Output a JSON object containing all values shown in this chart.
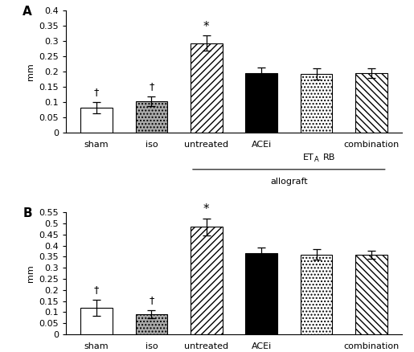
{
  "panels": [
    {
      "label": "A",
      "values": [
        0.082,
        0.103,
        0.293,
        0.195,
        0.193,
        0.195
      ],
      "errors": [
        0.018,
        0.015,
        0.025,
        0.018,
        0.018,
        0.015
      ],
      "ylim": [
        0,
        0.4
      ],
      "yticks": [
        0,
        0.05,
        0.1,
        0.15,
        0.2,
        0.25,
        0.3,
        0.35,
        0.4
      ],
      "star_bar": 2,
      "dagger_bars": [
        0,
        1
      ]
    },
    {
      "label": "B",
      "values": [
        0.12,
        0.092,
        0.485,
        0.365,
        0.36,
        0.358
      ],
      "errors": [
        0.035,
        0.018,
        0.038,
        0.025,
        0.025,
        0.018
      ],
      "ylim": [
        0,
        0.55
      ],
      "yticks": [
        0,
        0.05,
        0.1,
        0.15,
        0.2,
        0.25,
        0.3,
        0.35,
        0.4,
        0.45,
        0.5,
        0.55
      ],
      "star_bar": 2,
      "dagger_bars": [
        0,
        1
      ]
    }
  ],
  "bar_facecolors": [
    "white",
    "#aaaaaa",
    "white",
    "black",
    "white",
    "white"
  ],
  "bar_hatches": [
    "",
    "....",
    "////",
    "",
    "....",
    "\\\\\\\\"
  ],
  "xlabels": [
    "sham",
    "iso",
    "untreated",
    "ACEi",
    "",
    "combination"
  ],
  "ylabel": "mm",
  "font_size": 8,
  "panel_label_size": 11,
  "bar_width": 0.58
}
